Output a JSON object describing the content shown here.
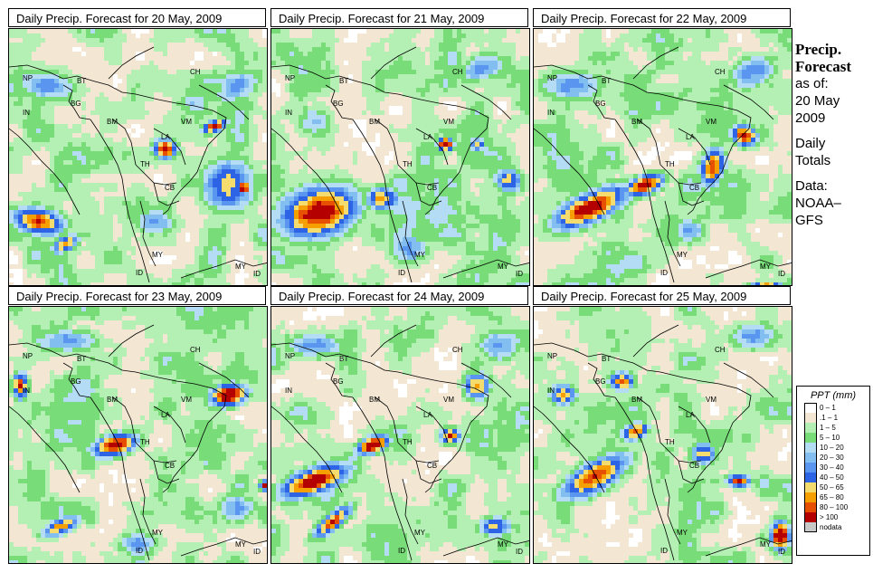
{
  "panels": [
    {
      "title": "Daily Precip. Forecast for  20 May, 2009"
    },
    {
      "title": "Daily Precip. Forecast for  21 May, 2009"
    },
    {
      "title": "Daily Precip. Forecast for  22 May, 2009"
    },
    {
      "title": "Daily Precip. Forecast for  23 May, 2009"
    },
    {
      "title": "Daily Precip. Forecast for  24 May, 2009"
    },
    {
      "title": "Daily Precip. Forecast for  25 May, 2009"
    }
  ],
  "country_labels": [
    "NP",
    "BT",
    "IN",
    "BG",
    "BM",
    "CH",
    "VM",
    "LA",
    "TH",
    "CB",
    "MY",
    "ID",
    "MY",
    "ID"
  ],
  "sidebar": {
    "heading1": "Precip.",
    "heading2": "Forecast",
    "asof1": "as of:",
    "asof2": "20 May",
    "asof3": "2009",
    "daily1": "Daily",
    "daily2": "Totals",
    "data1": "Data:",
    "data2": "NOAA–",
    "data3": "GFS"
  },
  "legend": {
    "title": "PPT (mm)",
    "items": [
      {
        "label": "0 – 1",
        "color": "#ffffff"
      },
      {
        "label": ".1 – 1",
        "color": "#f3e7d3"
      },
      {
        "label": "1 – 5",
        "color": "#b4f0b4"
      },
      {
        "label": "5 – 10",
        "color": "#78dc78"
      },
      {
        "label": "10 – 20",
        "color": "#b4dcf5"
      },
      {
        "label": "20 – 30",
        "color": "#82bef0"
      },
      {
        "label": "30 – 40",
        "color": "#5a96f0"
      },
      {
        "label": "40 – 50",
        "color": "#2d64e6"
      },
      {
        "label": "50 – 65",
        "color": "#f5dc6e"
      },
      {
        "label": "65 – 80",
        "color": "#f5a000"
      },
      {
        "label": "80 – 100",
        "color": "#e65000"
      },
      {
        "label": "> 100",
        "color": "#b40000"
      },
      {
        "label": "nodata",
        "color": "#c8c8c8"
      }
    ]
  }
}
